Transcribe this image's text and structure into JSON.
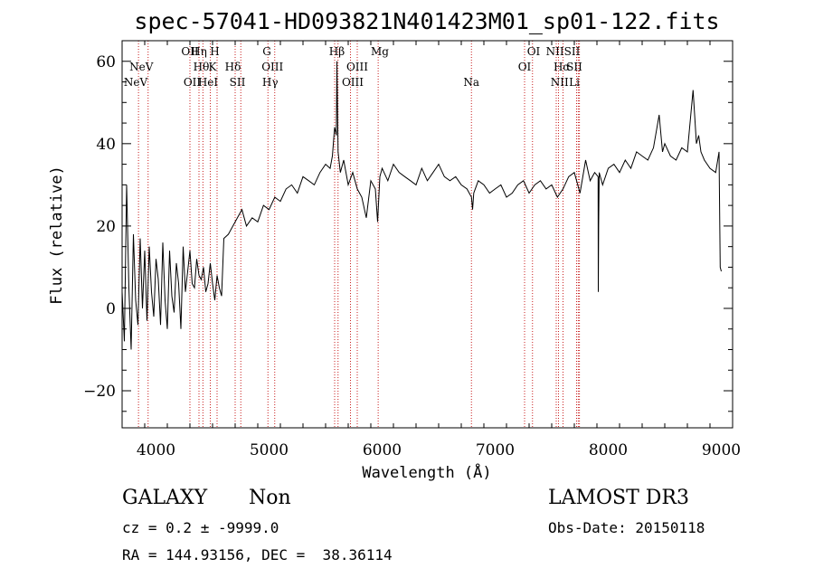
{
  "chart_data": {
    "type": "line",
    "title": "spec-57041-HD093821N401423M01_sp01-122.fits",
    "xlabel": "Wavelength (Å)",
    "ylabel": "Flux (relative)",
    "xlim": [
      3700,
      9100
    ],
    "ylim": [
      -29,
      65
    ],
    "xticks": [
      4000,
      5000,
      6000,
      7000,
      8000,
      9000
    ],
    "yticks": [
      -20,
      0,
      20,
      40,
      60
    ],
    "series": [
      {
        "color": "#000000",
        "x": [
          3700,
          3720,
          3740,
          3760,
          3780,
          3800,
          3820,
          3840,
          3860,
          3880,
          3900,
          3920,
          3940,
          3960,
          3980,
          4000,
          4020,
          4040,
          4060,
          4080,
          4100,
          4120,
          4140,
          4160,
          4180,
          4200,
          4220,
          4240,
          4260,
          4280,
          4300,
          4320,
          4340,
          4360,
          4380,
          4400,
          4420,
          4440,
          4460,
          4480,
          4500,
          4520,
          4540,
          4560,
          4580,
          4600,
          4640,
          4680,
          4720,
          4760,
          4800,
          4850,
          4900,
          4950,
          5000,
          5050,
          5100,
          5150,
          5200,
          5250,
          5300,
          5350,
          5400,
          5450,
          5500,
          5540,
          5560,
          5580,
          5595,
          5600,
          5610,
          5630,
          5660,
          5700,
          5740,
          5780,
          5820,
          5860,
          5900,
          5940,
          5960,
          5980,
          6000,
          6050,
          6100,
          6150,
          6200,
          6250,
          6300,
          6350,
          6400,
          6450,
          6500,
          6550,
          6600,
          6650,
          6700,
          6750,
          6790,
          6800,
          6810,
          6850,
          6900,
          6950,
          7000,
          7050,
          7100,
          7150,
          7200,
          7250,
          7300,
          7350,
          7400,
          7450,
          7500,
          7550,
          7600,
          7650,
          7700,
          7750,
          7800,
          7840,
          7880,
          7910,
          7912,
          7915,
          7920,
          7950,
          8000,
          8050,
          8100,
          8150,
          8200,
          8250,
          8300,
          8350,
          8400,
          8450,
          8480,
          8500,
          8550,
          8600,
          8650,
          8700,
          8750,
          8780,
          8800,
          8820,
          8850,
          8900,
          8950,
          8980,
          8990,
          9000
        ],
        "y": [
          4,
          -8,
          30,
          5,
          -10,
          18,
          2,
          -4,
          17,
          0,
          14,
          -3,
          15,
          4,
          -2,
          12,
          7,
          -4,
          16,
          2,
          -5,
          14,
          3,
          -1,
          11,
          6,
          -5,
          15,
          4,
          9,
          14,
          6,
          5,
          12,
          8,
          7,
          10,
          4,
          6,
          11,
          6,
          2,
          8,
          5,
          3,
          17,
          18,
          20,
          22,
          24,
          20,
          22,
          21,
          25,
          24,
          27,
          26,
          29,
          30,
          28,
          32,
          31,
          30,
          33,
          35,
          34,
          37,
          44,
          42,
          60,
          38,
          33,
          36,
          30,
          33,
          29,
          27,
          22,
          31,
          29,
          21,
          32,
          34,
          31,
          35,
          33,
          32,
          31,
          30,
          34,
          31,
          33,
          35,
          32,
          31,
          32,
          30,
          29,
          27,
          24,
          28,
          31,
          30,
          28,
          29,
          30,
          27,
          28,
          30,
          31,
          28,
          30,
          31,
          29,
          30,
          27,
          29,
          32,
          33,
          28,
          36,
          31,
          33,
          32,
          4,
          20,
          33,
          30,
          34,
          35,
          33,
          36,
          34,
          38,
          37,
          36,
          39,
          47,
          38,
          40,
          37,
          36,
          39,
          38,
          53,
          40,
          42,
          38,
          36,
          34,
          33,
          38,
          10,
          9
        ]
      }
    ],
    "line_labels": [
      {
        "x": 3820,
        "row": 2,
        "text": "NeV"
      },
      {
        "x": 3870,
        "row": 1,
        "text": "NeV"
      },
      {
        "x": 4300,
        "row": 0,
        "text": "OII"
      },
      {
        "x": 4320,
        "row": 2,
        "text": "OII"
      },
      {
        "x": 4380,
        "row": 0,
        "text": "Hη"
      },
      {
        "x": 4400,
        "row": 1,
        "text": "Hθ"
      },
      {
        "x": 4460,
        "row": 2,
        "text": "HeI"
      },
      {
        "x": 4520,
        "row": 0,
        "text": "H"
      },
      {
        "x": 4500,
        "row": 1,
        "text": "K"
      },
      {
        "x": 4680,
        "row": 1,
        "text": "Hδ"
      },
      {
        "x": 4720,
        "row": 2,
        "text": "SII"
      },
      {
        "x": 4980,
        "row": 0,
        "text": "G"
      },
      {
        "x": 5030,
        "row": 1,
        "text": "OIII"
      },
      {
        "x": 5010,
        "row": 2,
        "text": "Hγ"
      },
      {
        "x": 5600,
        "row": 0,
        "text": "Hβ"
      },
      {
        "x": 5780,
        "row": 1,
        "text": "OIII"
      },
      {
        "x": 5740,
        "row": 2,
        "text": "OIII"
      },
      {
        "x": 5980,
        "row": 0,
        "text": "Mg"
      },
      {
        "x": 6790,
        "row": 2,
        "text": "Na"
      },
      {
        "x": 7340,
        "row": 0,
        "text": "OI"
      },
      {
        "x": 7260,
        "row": 1,
        "text": "OI"
      },
      {
        "x": 7600,
        "row": 0,
        "text": "NIISII"
      },
      {
        "x": 7590,
        "row": 1,
        "text": "Hα"
      },
      {
        "x": 7700,
        "row": 1,
        "text": "SII"
      },
      {
        "x": 7570,
        "row": 2,
        "text": "NII"
      },
      {
        "x": 7700,
        "row": 2,
        "text": "Li"
      }
    ],
    "marker_lines": [
      3845,
      3930,
      4300,
      4380,
      4415,
      4480,
      4540,
      4700,
      4750,
      4990,
      5050,
      5580,
      5610,
      5720,
      5780,
      5965,
      6790,
      7260,
      7330,
      7540,
      7560,
      7600,
      7720,
      7735,
      7745
    ],
    "marker_color": "#c81e1e"
  },
  "info": {
    "object_class": "GALAXY",
    "subclass": "Non",
    "survey": "LAMOST DR3",
    "cz": "cz = 0.2 ± -9999.0",
    "obs_date": "Obs-Date: 20150118",
    "coords": "RA = 144.93156, DEC =  38.36114"
  }
}
